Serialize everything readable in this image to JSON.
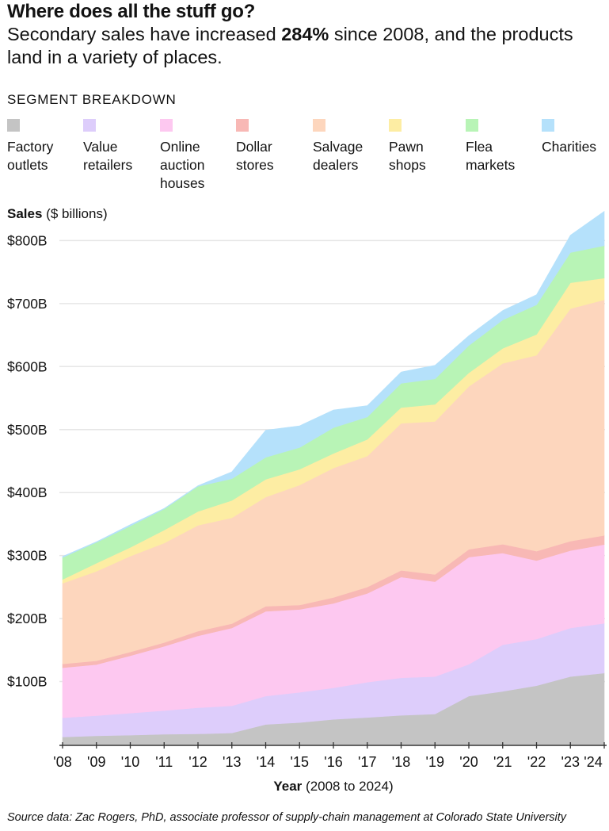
{
  "header": {
    "title": "Where does all the stuff go?",
    "subtitle_pre": "Secondary sales have increased ",
    "subtitle_bold": "284%",
    "subtitle_post": " since 2008, and the products land in a variety of places."
  },
  "legend_title": "SEGMENT BREAKDOWN",
  "y_axis_title_bold": "Sales",
  "y_axis_title_rest": " ($ billions)",
  "x_axis_title_bold": "Year",
  "x_axis_title_rest": " (2008 to 2024)",
  "source": "Source data: Zac Rogers, PhD, associate professor of supply-chain management at Colorado State University",
  "chart_data": {
    "type": "area",
    "stacked": true,
    "title": "Where does all the stuff go?",
    "xlabel": "Year (2008 to 2024)",
    "ylabel": "Sales ($ billions)",
    "x": [
      2008,
      2009,
      2010,
      2011,
      2012,
      2013,
      2014,
      2015,
      2016,
      2017,
      2018,
      2019,
      2020,
      2021,
      2022,
      2023,
      2024
    ],
    "x_tick_labels": [
      "'08",
      "'09",
      "'10",
      "'11",
      "'12",
      "'13",
      "'14",
      "'15",
      "'16",
      "'17",
      "'18",
      "'19",
      "'20",
      "'21",
      "'22",
      "'23",
      "'24"
    ],
    "y_ticks": [
      100,
      200,
      300,
      400,
      500,
      600,
      700,
      800
    ],
    "y_tick_labels": [
      "$100B",
      "$200B",
      "$300B",
      "$400B",
      "$500B",
      "$600B",
      "$700B",
      "$800B"
    ],
    "ylim": [
      0,
      850
    ],
    "grid": true,
    "legend_position": "top",
    "series": [
      {
        "name": "Factory outlets",
        "label": "Factory\noutlets",
        "color": "#c4c4c4",
        "values": [
          12,
          14,
          15,
          16.5,
          17,
          18.5,
          32,
          35,
          40,
          43,
          46.5,
          48.5,
          77,
          84.5,
          93.5,
          108,
          113.5
        ]
      },
      {
        "name": "Value retailers",
        "label": "Value\nretailers",
        "color": "#ddcdfb",
        "values": [
          30.5,
          32,
          35,
          37.5,
          41.5,
          43,
          45,
          48,
          50,
          56,
          59.5,
          59.5,
          50.5,
          74,
          74,
          77,
          79
        ]
      },
      {
        "name": "Online auction houses",
        "label": "Online\nauction\nhouses",
        "color": "#fdc8f0",
        "values": [
          79.5,
          81,
          91,
          102,
          114,
          123.5,
          134.5,
          131.5,
          134,
          141,
          160,
          150.5,
          170,
          145.5,
          124.5,
          123,
          125
        ]
      },
      {
        "name": "Dollar stores",
        "label": "Dollar\nstores",
        "color": "#f8b8b5",
        "values": [
          6,
          6,
          6,
          6,
          7.5,
          7,
          8,
          7,
          9.5,
          10,
          10.5,
          11.5,
          12.5,
          14,
          15,
          15,
          14.5
        ]
      },
      {
        "name": "Salvage dealers",
        "label": "Salvage\ndealers",
        "color": "#fdd6bd",
        "values": [
          128,
          142,
          152,
          158,
          168,
          168,
          173.5,
          190.5,
          205.5,
          208,
          233.5,
          243,
          258.5,
          287,
          311,
          369,
          374
        ]
      },
      {
        "name": "Pawn shops",
        "label": "Pawn\nshops",
        "color": "#fdeda3",
        "values": [
          6,
          13,
          14,
          20.5,
          22,
          27.5,
          28,
          25,
          23,
          26.5,
          25,
          27,
          21.5,
          24,
          33,
          41,
          34.5
        ]
      },
      {
        "name": "Flea markets",
        "label": "Flea\nmarkets",
        "color": "#b8f4b6",
        "values": [
          35,
          33,
          34,
          33.5,
          40,
          34.5,
          35,
          34.5,
          41,
          35.5,
          38.5,
          40.5,
          43.5,
          45,
          47,
          48,
          51.5
        ]
      },
      {
        "name": "Charities",
        "label": "Charities",
        "color": "#b5e1fb",
        "values": [
          1.5,
          1,
          2,
          1,
          1,
          11,
          43,
          34.5,
          28,
          18,
          18,
          21.5,
          15.5,
          15,
          16,
          27.5,
          54.5
        ]
      }
    ]
  }
}
